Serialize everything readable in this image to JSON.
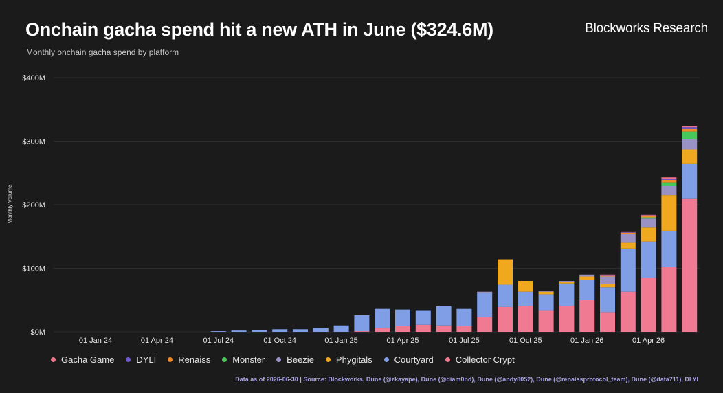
{
  "header": {
    "title": "Onchain gacha spend hit a new ATH in June ($324.6M)",
    "subtitle": "Monthly onchain gacha spend by platform",
    "brand": "Blockworks Research"
  },
  "source_note": "Data as of 2026-06-30 | Source: Blockworks, Dune (@zkayape), Dune (@diam0nd), Dune (@andy8052), Dune (@renaissprotocol_team), Dune (@data711), DLYI",
  "colors": {
    "background": "#1b1b1c",
    "gridline": "#2e2e30"
  },
  "chart_data": {
    "type": "bar",
    "stacked": true,
    "title": "Onchain gacha spend hit a new ATH in June ($324.6M)",
    "subtitle": "Monthly onchain gacha spend by platform",
    "ylabel": "Monthly Volume",
    "xlabel": "",
    "ylim": [
      0,
      400
    ],
    "y_ticks": [
      {
        "value": 0,
        "label": "$0M"
      },
      {
        "value": 100,
        "label": "$100M"
      },
      {
        "value": 200,
        "label": "$200M"
      },
      {
        "value": 300,
        "label": "$300M"
      },
      {
        "value": 400,
        "label": "$400M"
      }
    ],
    "x_ticks": [
      {
        "month": "2024-01",
        "label": "01 Jan 24"
      },
      {
        "month": "2024-04",
        "label": "01 Apr 24"
      },
      {
        "month": "2024-07",
        "label": "01 Jul 24"
      },
      {
        "month": "2024-10",
        "label": "01 Oct 24"
      },
      {
        "month": "2025-01",
        "label": "01 Jan 25"
      },
      {
        "month": "2025-04",
        "label": "01 Apr 25"
      },
      {
        "month": "2025-07",
        "label": "01 Jul 25"
      },
      {
        "month": "2025-10",
        "label": "01 Oct 25"
      },
      {
        "month": "2026-01",
        "label": "01 Jan 26"
      },
      {
        "month": "2026-04",
        "label": "01 Apr 26"
      }
    ],
    "legend_position": "bottom",
    "grid": true,
    "categories": [
      "2024-07",
      "2024-08",
      "2024-09",
      "2024-10",
      "2024-11",
      "2024-12",
      "2025-01",
      "2025-02",
      "2025-03",
      "2025-04",
      "2025-05",
      "2025-06",
      "2025-07",
      "2025-08",
      "2025-09",
      "2025-10",
      "2025-11",
      "2025-12",
      "2026-01",
      "2026-02",
      "2026-03",
      "2026-04",
      "2026-05",
      "2026-06"
    ],
    "series": [
      {
        "name": "Collector Crypt",
        "color": "#f07a92",
        "values": [
          0,
          0,
          0,
          0,
          0,
          0,
          0,
          1,
          6,
          9,
          11,
          10,
          9,
          23,
          39,
          41,
          34,
          41,
          50,
          31,
          63,
          85,
          102,
          210
        ]
      },
      {
        "name": "Courtyard",
        "color": "#7f9ee6",
        "values": [
          1,
          2,
          3,
          4,
          4,
          6,
          10,
          25,
          30,
          26,
          23,
          30,
          27,
          38,
          35,
          22,
          25,
          35,
          32,
          39,
          68,
          57,
          57,
          55
        ]
      },
      {
        "name": "Phygitals",
        "color": "#f0a81e",
        "values": [
          0,
          0,
          0,
          0,
          0,
          0,
          0,
          0,
          0,
          0,
          0,
          0,
          0,
          0,
          40,
          17,
          4,
          3,
          5,
          5,
          10,
          22,
          56,
          22
        ]
      },
      {
        "name": "Beezie",
        "color": "#9a92c4",
        "values": [
          0,
          0,
          0,
          0,
          0,
          0,
          0,
          0,
          0,
          0,
          0,
          0,
          0,
          2,
          0,
          0,
          1,
          1,
          3,
          12,
          13,
          14,
          15,
          16
        ]
      },
      {
        "name": "Monster",
        "color": "#47c85a",
        "values": [
          0,
          0,
          0,
          0,
          0,
          0,
          0,
          0,
          0,
          0,
          0,
          0,
          0,
          0,
          0,
          0,
          0,
          0,
          0,
          0,
          0,
          2,
          5,
          12
        ]
      },
      {
        "name": "Renaiss",
        "color": "#f08c28",
        "values": [
          0,
          0,
          0,
          0,
          0,
          0,
          0,
          0,
          0,
          0,
          0,
          0,
          0,
          0,
          0,
          0,
          0,
          0,
          0,
          1,
          2,
          2,
          4,
          4
        ]
      },
      {
        "name": "DYLI",
        "color": "#7058d0",
        "values": [
          0,
          0,
          0,
          0,
          0,
          0,
          0,
          0,
          0,
          0,
          0,
          0,
          0,
          0,
          0,
          0,
          0,
          0,
          0,
          1,
          1,
          1,
          2,
          3
        ]
      },
      {
        "name": "Gacha Game",
        "color": "#e8758a",
        "values": [
          0,
          0,
          0,
          0,
          0,
          0,
          0,
          0,
          0,
          0,
          0,
          0,
          0,
          0,
          0,
          0,
          0,
          0,
          0,
          1,
          1,
          1,
          2,
          2
        ]
      }
    ],
    "legend_order": [
      "Gacha Game",
      "DYLI",
      "Renaiss",
      "Monster",
      "Beezie",
      "Phygitals",
      "Courtyard",
      "Collector Crypt"
    ]
  }
}
